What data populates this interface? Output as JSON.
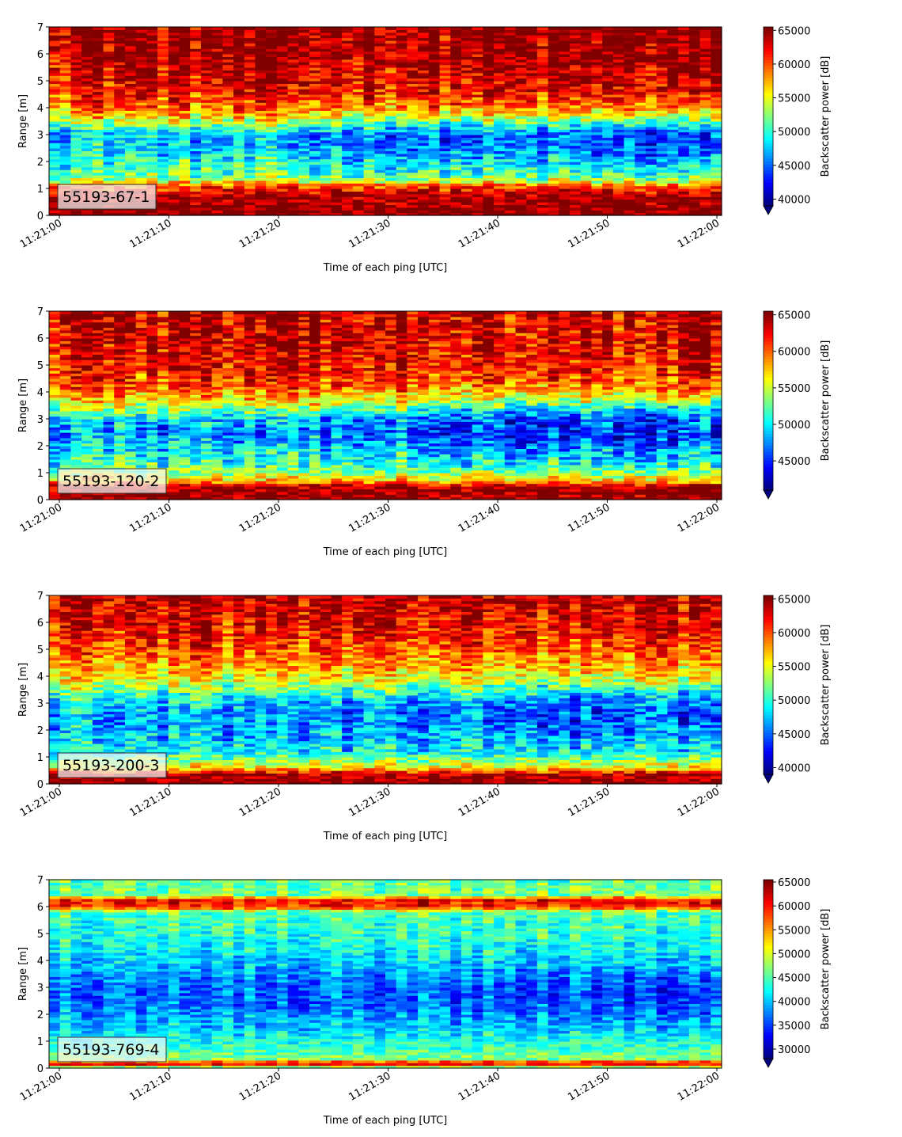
{
  "chart_data": [
    {
      "type": "heatmap",
      "label": "55193-67-1",
      "xlabel": "Time of each ping [UTC]",
      "ylabel": "Range [m]",
      "xticks": [
        "11:21:00",
        "11:21:10",
        "11:21:20",
        "11:21:30",
        "11:21:40",
        "11:21:50",
        "11:22:00"
      ],
      "yticks": [
        0,
        1,
        2,
        3,
        4,
        5,
        6,
        7
      ],
      "ylim": [
        0,
        7
      ],
      "colorbar_label": "Backscatter power [dB]",
      "colorbar_ticks": [
        40000,
        45000,
        50000,
        55000,
        60000,
        65000
      ],
      "clim": [
        39000,
        65500
      ],
      "colormap": "jet",
      "range_profile": [
        [
          0.0,
          65500
        ],
        [
          0.2,
          65500
        ],
        [
          0.7,
          65000
        ],
        [
          1.1,
          60500
        ],
        [
          1.3,
          54000
        ],
        [
          1.6,
          51000
        ],
        [
          2.0,
          50500
        ],
        [
          2.5,
          49000
        ],
        [
          3.0,
          48000
        ],
        [
          3.5,
          55000
        ],
        [
          4.0,
          59500
        ],
        [
          4.5,
          62000
        ],
        [
          5.0,
          63000
        ],
        [
          5.5,
          64000
        ],
        [
          6.0,
          64500
        ],
        [
          7.0,
          65000
        ]
      ],
      "trend_low_range": 42000
    },
    {
      "type": "heatmap",
      "label": "55193-120-2",
      "xlabel": "Time of each ping [UTC]",
      "ylabel": "Range [m]",
      "xticks": [
        "11:21:00",
        "11:21:10",
        "11:21:20",
        "11:21:30",
        "11:21:40",
        "11:21:50",
        "11:22:00"
      ],
      "yticks": [
        0,
        1,
        2,
        3,
        4,
        5,
        6,
        7
      ],
      "ylim": [
        0,
        7
      ],
      "colorbar_label": "Backscatter power [dB]",
      "colorbar_ticks": [
        45000,
        50000,
        55000,
        60000,
        65000
      ],
      "clim": [
        41000,
        65500
      ],
      "colormap": "jet",
      "range_profile": [
        [
          0.0,
          65500
        ],
        [
          0.5,
          65000
        ],
        [
          0.7,
          58000
        ],
        [
          1.2,
          52000
        ],
        [
          2.0,
          49500
        ],
        [
          2.5,
          48000
        ],
        [
          3.0,
          50000
        ],
        [
          3.5,
          56000
        ],
        [
          4.0,
          59500
        ],
        [
          4.5,
          61500
        ],
        [
          5.0,
          62500
        ],
        [
          6.0,
          63500
        ],
        [
          7.0,
          64000
        ]
      ],
      "trend_low_range": 44000
    },
    {
      "type": "heatmap",
      "label": "55193-200-3",
      "xlabel": "Time of each ping [UTC]",
      "ylabel": "Range [m]",
      "xticks": [
        "11:21:00",
        "11:21:10",
        "11:21:20",
        "11:21:30",
        "11:21:40",
        "11:21:50",
        "11:22:00"
      ],
      "yticks": [
        0,
        1,
        2,
        3,
        4,
        5,
        6,
        7
      ],
      "ylim": [
        0,
        7
      ],
      "colorbar_label": "Backscatter power [dB]",
      "colorbar_ticks": [
        40000,
        45000,
        50000,
        55000,
        60000,
        65000
      ],
      "clim": [
        39000,
        65500
      ],
      "colormap": "jet",
      "range_profile": [
        [
          0.0,
          65500
        ],
        [
          0.35,
          64500
        ],
        [
          0.6,
          56000
        ],
        [
          1.2,
          49000
        ],
        [
          2.0,
          47000
        ],
        [
          2.6,
          46500
        ],
        [
          3.2,
          50000
        ],
        [
          3.8,
          55000
        ],
        [
          4.5,
          58000
        ],
        [
          5.2,
          60500
        ],
        [
          6.0,
          62500
        ],
        [
          7.0,
          63500
        ]
      ],
      "trend_low_range": 43000
    },
    {
      "type": "heatmap",
      "label": "55193-769-4",
      "xlabel": "Time of each ping [UTC]",
      "ylabel": "Range [m]",
      "xticks": [
        "11:21:00",
        "11:21:10",
        "11:21:20",
        "11:21:30",
        "11:21:40",
        "11:21:50",
        "11:22:00"
      ],
      "yticks": [
        0,
        1,
        2,
        3,
        4,
        5,
        6,
        7
      ],
      "ylim": [
        0,
        7
      ],
      "colorbar_label": "Backscatter power [dB]",
      "colorbar_ticks": [
        30000,
        35000,
        40000,
        45000,
        50000,
        55000,
        60000,
        65000
      ],
      "clim": [
        28000,
        65500
      ],
      "colormap": "jet",
      "range_profile": [
        [
          0.0,
          42000
        ],
        [
          0.18,
          64000
        ],
        [
          0.35,
          47000
        ],
        [
          0.8,
          44000
        ],
        [
          1.5,
          41000
        ],
        [
          2.5,
          37500
        ],
        [
          3.2,
          38000
        ],
        [
          4.0,
          41000
        ],
        [
          5.0,
          44000
        ],
        [
          5.8,
          45000
        ],
        [
          6.0,
          60000
        ],
        [
          6.25,
          61000
        ],
        [
          6.45,
          47000
        ],
        [
          7.0,
          45500
        ]
      ],
      "trend_low_range": 34000
    }
  ]
}
